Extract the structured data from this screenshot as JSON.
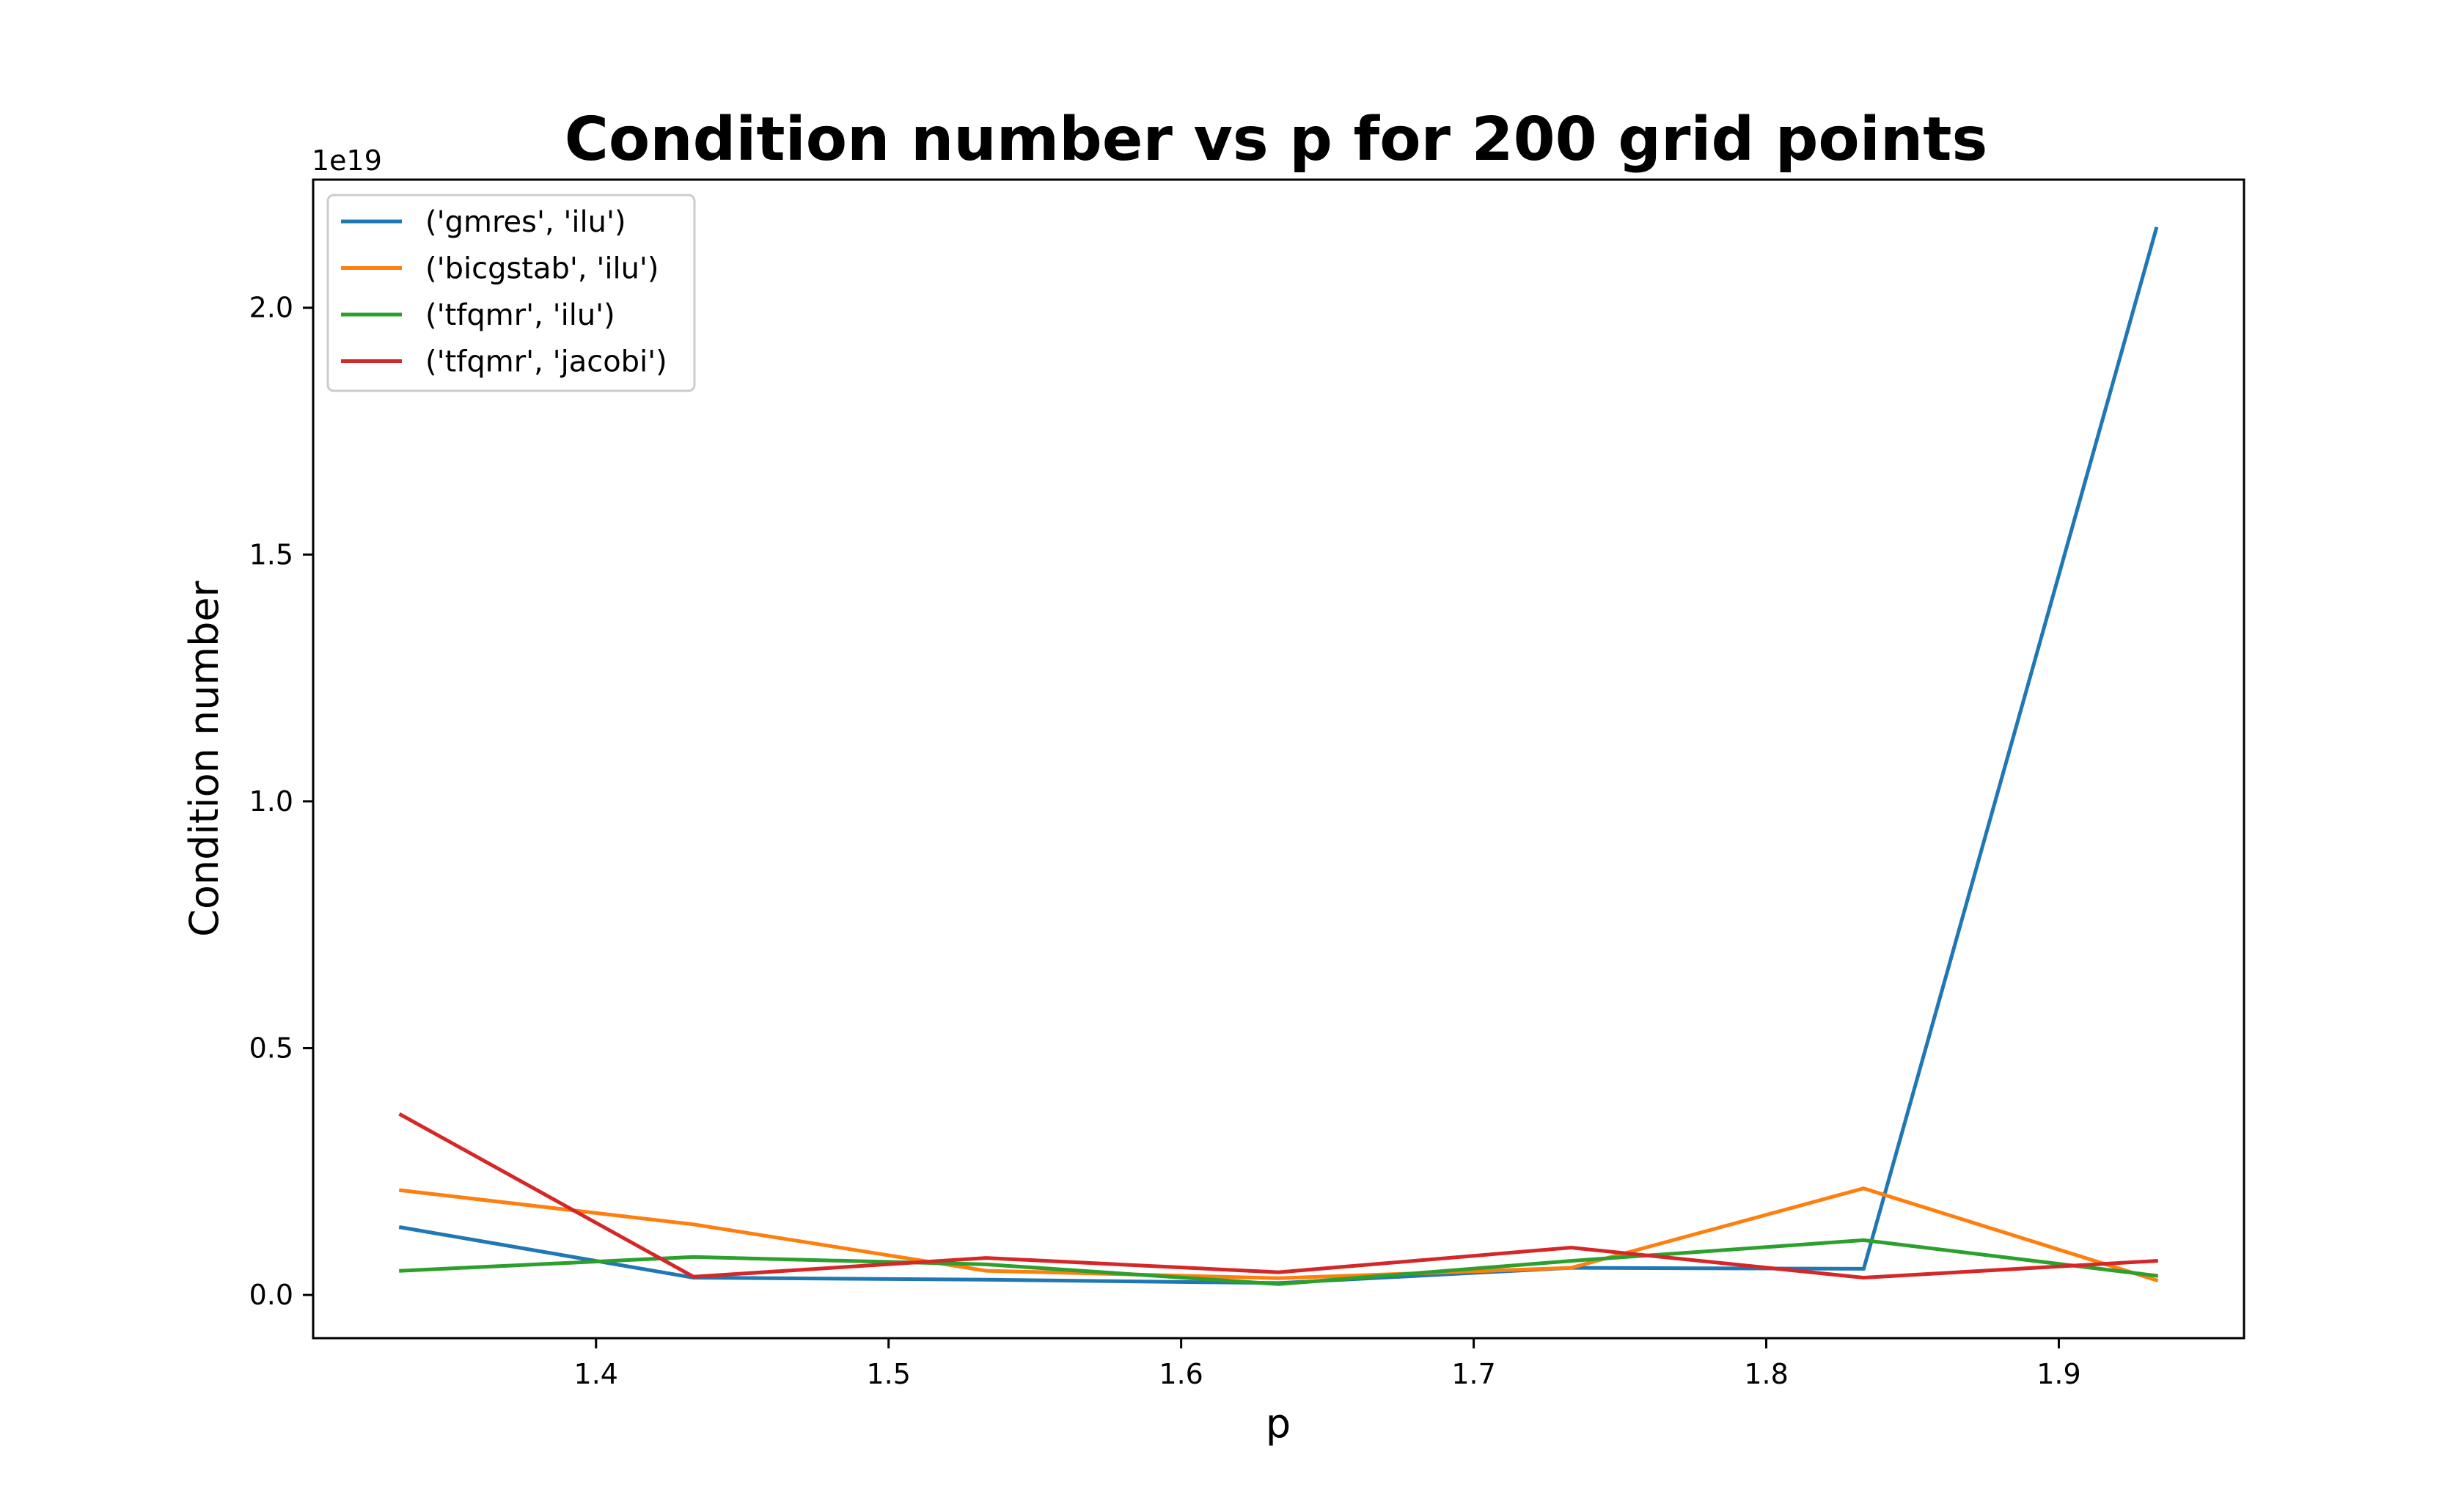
{
  "chart_data": {
    "type": "line",
    "title": "Condition number vs p for 200 grid points",
    "xlabel": "p",
    "ylabel": "Condition number",
    "y_offset_label": "1e19",
    "xlim": [
      1.3033,
      1.9633
    ],
    "ylim": [
      -0.0875,
      2.2595
    ],
    "x_ticks": [
      1.4,
      1.5,
      1.6,
      1.7,
      1.8,
      1.9
    ],
    "x_tick_labels": [
      "1.4",
      "1.5",
      "1.6",
      "1.7",
      "1.8",
      "1.9"
    ],
    "y_ticks": [
      0.0,
      0.5,
      1.0,
      1.5,
      2.0
    ],
    "y_tick_labels": [
      "0.0",
      "0.5",
      "1.0",
      "1.5",
      "2.0"
    ],
    "grid": false,
    "legend_position": "top-left",
    "x": [
      1.3333,
      1.4333,
      1.5333,
      1.6333,
      1.7333,
      1.8333,
      1.9333
    ],
    "series": [
      {
        "name": "('gmres', 'ilu')",
        "color": "#1f77b4",
        "values": [
          0.137,
          0.035,
          0.031,
          0.024,
          0.055,
          0.053,
          2.16
        ]
      },
      {
        "name": "('bicgstab', 'ilu')",
        "color": "#ff7f0e",
        "values": [
          0.212,
          0.143,
          0.049,
          0.034,
          0.055,
          0.216,
          0.03
        ]
      },
      {
        "name": "('tfqmr', 'ilu')",
        "color": "#2ca02c",
        "values": [
          0.049,
          0.077,
          0.062,
          0.022,
          0.069,
          0.111,
          0.039
        ]
      },
      {
        "name": "('tfqmr', 'jacobi')",
        "color": "#d62728",
        "values": [
          0.365,
          0.037,
          0.075,
          0.046,
          0.096,
          0.035,
          0.069
        ]
      }
    ]
  }
}
